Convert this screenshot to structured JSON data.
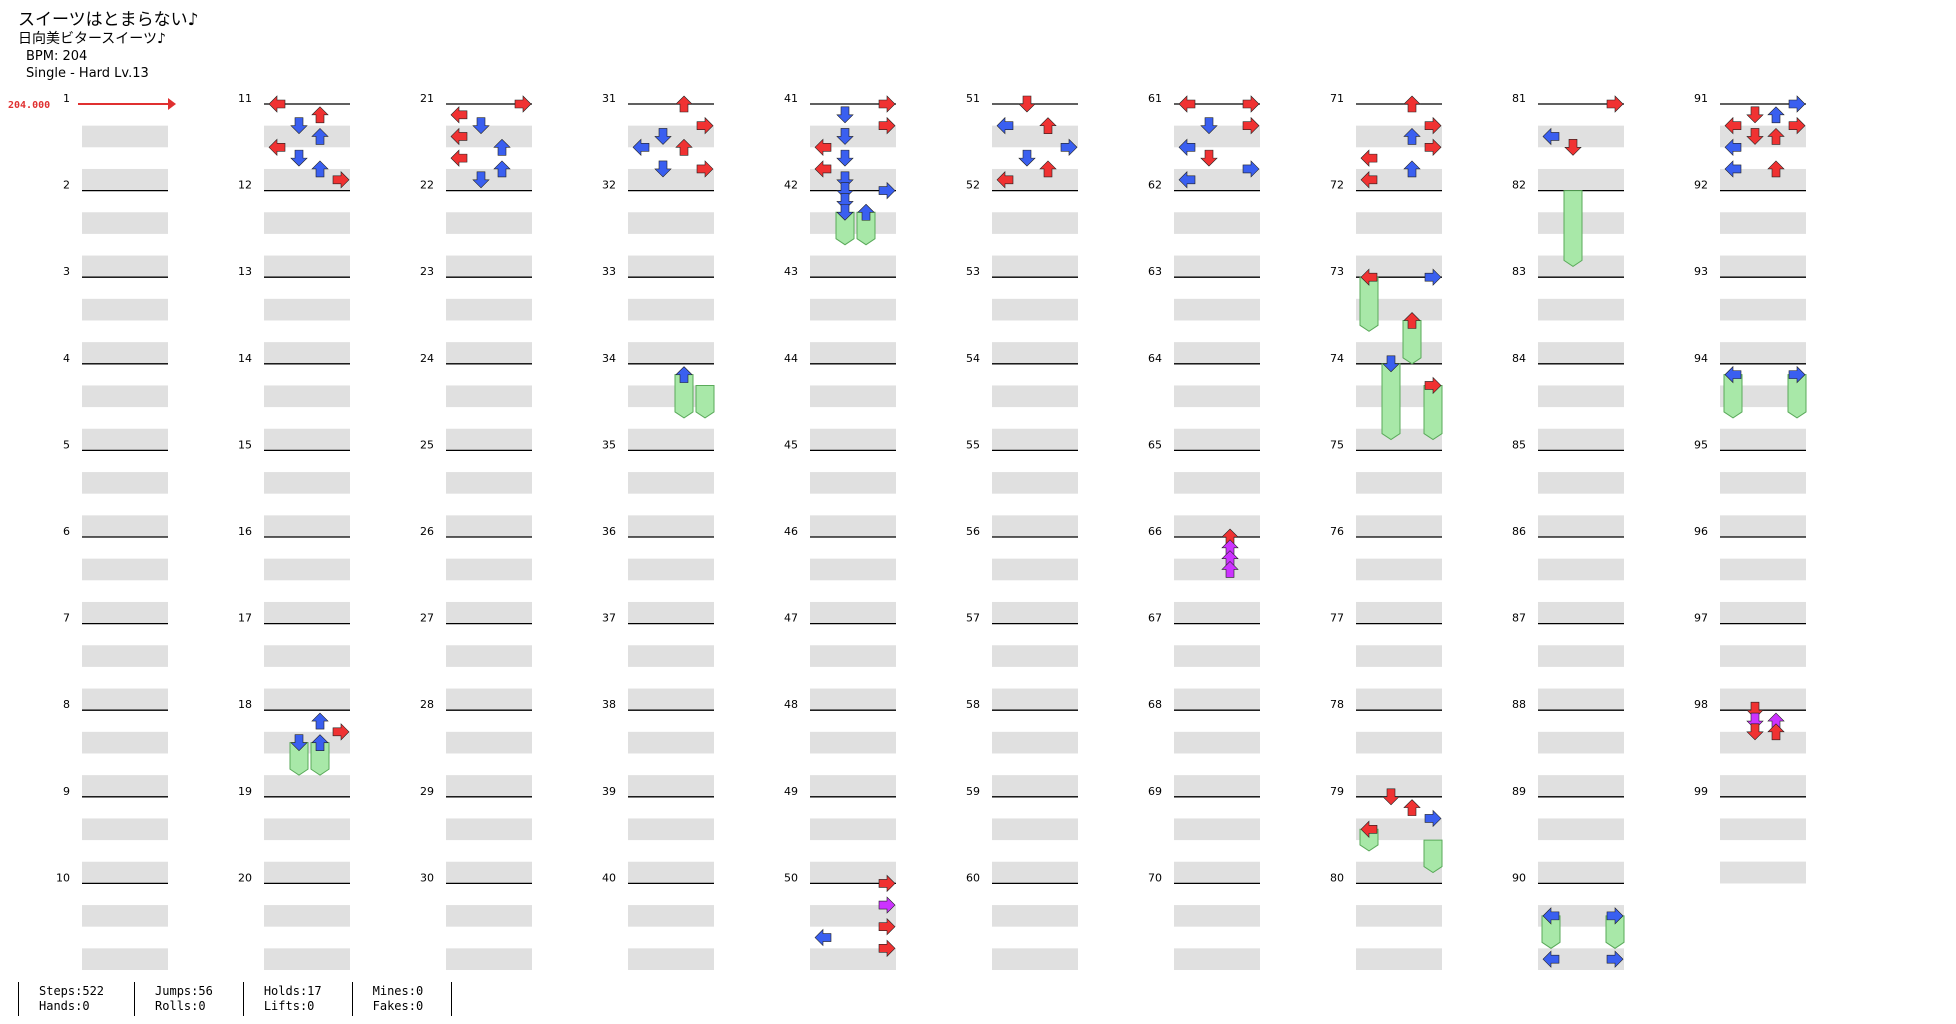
{
  "song": {
    "title": "スイーツはとまらない♪",
    "artist": "日向美ビタースイーツ♪",
    "bpm_label": "BPM: 204",
    "difficulty_label": "Single - Hard  Lv.13"
  },
  "bpm_marker": "204.000",
  "measure_count": 99,
  "colors": {
    "left": "#f03232",
    "down": "#3a5ff0",
    "up": "#f03232",
    "right": "#f03232",
    "quarter_blue": "#3a5ff0",
    "hold": "#a8e8a8",
    "lift": "#cc33ff",
    "band": "#e0e0e0"
  },
  "arrow_icons": [
    "left-arrow-icon",
    "down-arrow-icon",
    "up-arrow-icon",
    "right-arrow-icon",
    "hold-note-icon"
  ],
  "stats": [
    {
      "a": "Steps:522",
      "b": "Hands:0"
    },
    {
      "a": "Jumps:56",
      "b": "Rolls:0"
    },
    {
      "a": "Holds:17",
      "b": "Lifts:0"
    },
    {
      "a": "Mines:0",
      "b": "Fakes:0"
    }
  ],
  "chart_data": {
    "type": "table",
    "lanes": [
      "left",
      "down",
      "up",
      "right"
    ],
    "measures": [
      {
        "m": 11,
        "notes": [
          [
            0,
            0,
            "r"
          ],
          [
            2,
            0.125,
            "r"
          ],
          [
            1,
            0.25,
            "b"
          ],
          [
            2,
            0.375,
            "b"
          ],
          [
            0,
            0.5,
            "r"
          ],
          [
            1,
            0.625,
            "b"
          ],
          [
            2,
            0.75,
            "b"
          ],
          [
            3,
            0.875,
            "r"
          ]
        ]
      },
      {
        "m": 18,
        "notes": [
          [
            2,
            0.125,
            "b"
          ],
          [
            3,
            0.25,
            "r"
          ],
          [
            1,
            0.375,
            "b"
          ],
          [
            2,
            0.375,
            "b"
          ]
        ],
        "holds": [
          [
            1,
            0.375,
            0.75
          ],
          [
            2,
            0.375,
            0.75
          ]
        ]
      },
      {
        "m": 21,
        "notes": [
          [
            3,
            0,
            "r"
          ],
          [
            0,
            0.125,
            "r"
          ],
          [
            1,
            0.25,
            "b"
          ],
          [
            0,
            0.375,
            "r"
          ],
          [
            2,
            0.5,
            "b"
          ],
          [
            0,
            0.625,
            "r"
          ],
          [
            2,
            0.75,
            "b"
          ],
          [
            1,
            0.875,
            "b"
          ]
        ]
      },
      {
        "m": 31,
        "notes": [
          [
            2,
            0,
            "r"
          ],
          [
            3,
            0.25,
            "r"
          ],
          [
            1,
            0.375,
            "b"
          ],
          [
            0,
            0.5,
            "b"
          ],
          [
            2,
            0.5,
            "r"
          ],
          [
            1,
            0.75,
            "b"
          ],
          [
            3,
            0.75,
            "r"
          ]
        ]
      },
      {
        "m": 34,
        "notes": [
          [
            2,
            0.125,
            "b"
          ]
        ],
        "holds": [
          [
            2,
            0.125,
            0.625
          ],
          [
            3,
            0.25,
            0.625
          ]
        ]
      },
      {
        "m": 41,
        "notes": [
          [
            3,
            0,
            "r"
          ],
          [
            1,
            0.125,
            "b"
          ],
          [
            3,
            0.25,
            "r"
          ],
          [
            1,
            0.375,
            "b"
          ],
          [
            0,
            0.5,
            "r"
          ],
          [
            1,
            0.625,
            "b"
          ],
          [
            0,
            0.75,
            "r"
          ],
          [
            1,
            0.875,
            "b"
          ]
        ]
      },
      {
        "m": 42,
        "notes": [
          [
            1,
            0,
            "b"
          ],
          [
            3,
            0,
            "b"
          ],
          [
            1,
            0.125,
            "b"
          ],
          [
            1,
            0.25,
            "b"
          ],
          [
            2,
            0.25,
            "b"
          ]
        ],
        "holds": [
          [
            1,
            0.25,
            0.625
          ],
          [
            2,
            0.25,
            0.625
          ]
        ]
      },
      {
        "m": 50,
        "notes": [
          [
            3,
            0,
            "r"
          ],
          [
            3,
            0.25,
            "p"
          ],
          [
            3,
            0.5,
            "r"
          ],
          [
            3,
            0.75,
            "r"
          ],
          [
            0,
            0.625,
            "b"
          ]
        ]
      },
      {
        "m": 51,
        "notes": [
          [
            1,
            0,
            "r"
          ],
          [
            0,
            0.25,
            "b"
          ],
          [
            2,
            0.25,
            "r"
          ],
          [
            3,
            0.5,
            "b"
          ],
          [
            1,
            0.625,
            "b"
          ],
          [
            2,
            0.75,
            "r"
          ],
          [
            0,
            0.875,
            "r"
          ]
        ]
      },
      {
        "m": 61,
        "notes": [
          [
            0,
            0,
            "r"
          ],
          [
            3,
            0,
            "r"
          ],
          [
            1,
            0.25,
            "b"
          ],
          [
            3,
            0.25,
            "r"
          ],
          [
            0,
            0.5,
            "b"
          ],
          [
            1,
            0.625,
            "r"
          ],
          [
            3,
            0.75,
            "b"
          ],
          [
            0,
            0.875,
            "b"
          ]
        ]
      },
      {
        "m": 66,
        "notes": [
          [
            2,
            0,
            "r"
          ],
          [
            2,
            0.125,
            "p"
          ],
          [
            2,
            0.25,
            "p"
          ],
          [
            2,
            0.375,
            "p"
          ]
        ]
      },
      {
        "m": 71,
        "notes": [
          [
            2,
            0,
            "r"
          ],
          [
            3,
            0.25,
            "r"
          ],
          [
            2,
            0.375,
            "b"
          ],
          [
            3,
            0.5,
            "r"
          ],
          [
            0,
            0.625,
            "r"
          ],
          [
            2,
            0.75,
            "b"
          ],
          [
            0,
            0.875,
            "r"
          ]
        ]
      },
      {
        "m": 73,
        "notes": [
          [
            0,
            0,
            "r"
          ],
          [
            3,
            0,
            "b"
          ],
          [
            2,
            0.5,
            "r"
          ]
        ],
        "holds": [
          [
            0,
            0,
            0.625
          ],
          [
            2,
            0.5,
            1.0
          ]
        ]
      },
      {
        "m": 74,
        "notes": [
          [
            1,
            0,
            "b"
          ],
          [
            3,
            0.25,
            "r"
          ]
        ],
        "holds": [
          [
            1,
            0,
            0.875
          ],
          [
            3,
            0.25,
            0.875
          ]
        ]
      },
      {
        "m": 79,
        "notes": [
          [
            1,
            0,
            "r"
          ],
          [
            2,
            0.125,
            "r"
          ],
          [
            3,
            0.25,
            "b"
          ],
          [
            0,
            0.375,
            "r"
          ]
        ],
        "holds": [
          [
            0,
            0.375,
            0.625
          ],
          [
            3,
            0.5,
            0.875
          ]
        ]
      },
      {
        "m": 81,
        "notes": [
          [
            3,
            0,
            "r"
          ],
          [
            0,
            0.375,
            "b"
          ],
          [
            1,
            0.5,
            "r"
          ]
        ]
      },
      {
        "m": 82,
        "holds": [
          [
            1,
            0,
            0.875
          ]
        ]
      },
      {
        "m": 90,
        "notes": [
          [
            0,
            0.375,
            "b"
          ],
          [
            3,
            0.375,
            "b"
          ],
          [
            0,
            0.875,
            "b"
          ],
          [
            3,
            0.875,
            "b"
          ]
        ],
        "holds": [
          [
            0,
            0.375,
            0.75
          ],
          [
            3,
            0.375,
            0.75
          ]
        ]
      },
      {
        "m": 91,
        "notes": [
          [
            3,
            0,
            "b"
          ],
          [
            1,
            0.125,
            "r"
          ],
          [
            2,
            0.125,
            "b"
          ],
          [
            0,
            0.25,
            "r"
          ],
          [
            3,
            0.25,
            "r"
          ],
          [
            1,
            0.375,
            "r"
          ],
          [
            2,
            0.375,
            "r"
          ],
          [
            0,
            0.5,
            "b"
          ],
          [
            0,
            0.75,
            "b"
          ],
          [
            2,
            0.75,
            "r"
          ]
        ]
      },
      {
        "m": 94,
        "notes": [
          [
            0,
            0.125,
            "b"
          ],
          [
            3,
            0.125,
            "b"
          ]
        ],
        "holds": [
          [
            0,
            0.125,
            0.625
          ],
          [
            3,
            0.125,
            0.625
          ]
        ]
      },
      {
        "m": 98,
        "notes": [
          [
            1,
            0,
            "r"
          ],
          [
            2,
            0.125,
            "p"
          ],
          [
            1,
            0.125,
            "p"
          ],
          [
            1,
            0.25,
            "r"
          ],
          [
            2,
            0.25,
            "r"
          ]
        ]
      }
    ]
  }
}
